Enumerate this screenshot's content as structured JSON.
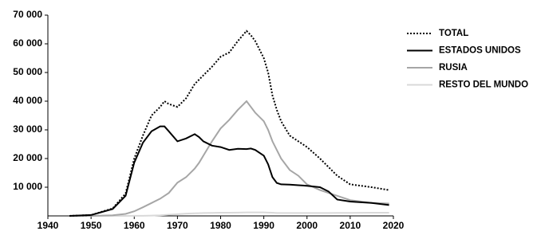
{
  "chart_data": {
    "type": "line",
    "x": [
      1945,
      1950,
      1955,
      1958,
      1960,
      1962,
      1964,
      1966,
      1967,
      1968,
      1970,
      1972,
      1974,
      1975,
      1976,
      1978,
      1980,
      1982,
      1984,
      1986,
      1987,
      1988,
      1990,
      1991,
      1992,
      1993,
      1994,
      1996,
      1998,
      2000,
      2003,
      2005,
      2007,
      2010,
      2015,
      2019
    ],
    "series": [
      {
        "name": "TOTAL",
        "color": "#000000",
        "dash": "dotted",
        "values": [
          2,
          300,
          2600,
          7800,
          20000,
          28000,
          35000,
          38000,
          40000,
          39000,
          38000,
          41000,
          46000,
          47500,
          49000,
          52000,
          55500,
          57000,
          61000,
          64500,
          63000,
          61000,
          55000,
          50000,
          42000,
          37000,
          33000,
          28000,
          26000,
          24000,
          20000,
          17000,
          14000,
          11000,
          10000,
          9000
        ]
      },
      {
        "name": "ESTADOS UNIDOS",
        "color": "#000000",
        "dash": "solid",
        "values": [
          2,
          300,
          2400,
          7000,
          18600,
          25500,
          29500,
          31200,
          31200,
          29500,
          26000,
          27000,
          28500,
          27500,
          26000,
          24500,
          24000,
          23000,
          23400,
          23300,
          23500,
          23000,
          21000,
          18000,
          13500,
          11500,
          11000,
          10900,
          10700,
          10500,
          10000,
          8500,
          5700,
          5000,
          4500,
          3800
        ]
      },
      {
        "name": "RUSIA",
        "color": "#a6a6a6",
        "dash": "solid",
        "values": [
          0,
          5,
          200,
          700,
          1600,
          3000,
          4500,
          6000,
          7000,
          8000,
          11600,
          13500,
          16500,
          18500,
          21000,
          26000,
          30500,
          33500,
          37000,
          40000,
          38000,
          36000,
          33000,
          30000,
          26000,
          23000,
          20000,
          16000,
          14000,
          11000,
          9000,
          8000,
          7000,
          5500,
          4500,
          4300
        ]
      },
      {
        "name": "RESTO DEL MUNDO",
        "color": "#d9d9d9",
        "dash": "solid",
        "values": [
          0,
          0,
          0,
          10,
          20,
          50,
          100,
          200,
          300,
          400,
          600,
          800,
          900,
          950,
          1000,
          1050,
          1100,
          1100,
          1150,
          1200,
          1200,
          1200,
          1200,
          1150,
          1100,
          1000,
          1000,
          1000,
          1000,
          1000,
          1000,
          1000,
          1050,
          1050,
          1100,
          1100
        ]
      }
    ],
    "xlim": [
      1940,
      2020
    ],
    "xticks": [
      1940,
      1950,
      1960,
      1970,
      1980,
      1990,
      2000,
      2010,
      2020
    ],
    "ylim": [
      0,
      70000
    ],
    "yticks": [
      {
        "value": 10000,
        "label": "10 000"
      },
      {
        "value": 20000,
        "label": "20 000"
      },
      {
        "value": 30000,
        "label": "30 000"
      },
      {
        "value": 40000,
        "label": "40 000"
      },
      {
        "value": 50000,
        "label": "50 000"
      },
      {
        "value": 60000,
        "label": "60 000"
      },
      {
        "value": 70000,
        "label": "70 000"
      }
    ],
    "grid": false,
    "legend": "right"
  }
}
